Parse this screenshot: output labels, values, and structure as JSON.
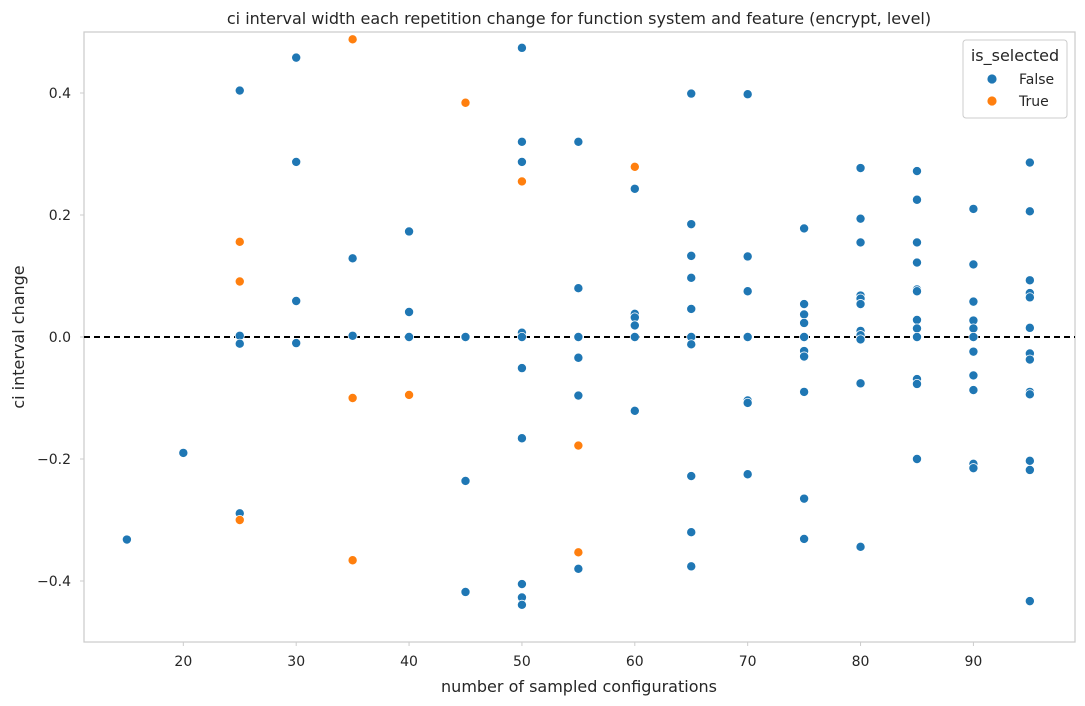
{
  "chart_data": {
    "type": "scatter",
    "title": "ci interval width each repetition change for function system and feature (encrypt, level)",
    "xlabel": "number of sampled configurations",
    "ylabel": "ci interval change",
    "xlim": [
      11.2,
      99
    ],
    "ylim": [
      -0.5,
      0.5
    ],
    "xticks": [
      20,
      30,
      40,
      50,
      60,
      70,
      80,
      90
    ],
    "yticks": [
      -0.4,
      -0.2,
      0.0,
      0.2,
      0.4
    ],
    "ytick_labels": [
      "−0.4",
      "−0.2",
      "0.0",
      "0.2",
      "0.4"
    ],
    "grid": false,
    "reference_line": {
      "y": 0,
      "style": "dashed",
      "color": "#000000"
    },
    "legend": {
      "title": "is_selected",
      "placement": "top-right"
    },
    "series": [
      {
        "name": "False",
        "color": "#1f77b4",
        "points": [
          [
            15,
            -0.332
          ],
          [
            20,
            -0.19
          ],
          [
            25,
            0.404
          ],
          [
            25,
            0.002
          ],
          [
            25,
            -0.011
          ],
          [
            25,
            -0.289
          ],
          [
            30,
            0.458
          ],
          [
            30,
            0.287
          ],
          [
            30,
            0.059
          ],
          [
            30,
            -0.01
          ],
          [
            35,
            0.129
          ],
          [
            35,
            0.002
          ],
          [
            40,
            0.173
          ],
          [
            40,
            0.041
          ],
          [
            40,
            0.0
          ],
          [
            45,
            0.0
          ],
          [
            45,
            -0.236
          ],
          [
            45,
            -0.418
          ],
          [
            50,
            0.474
          ],
          [
            50,
            0.32
          ],
          [
            50,
            0.287
          ],
          [
            50,
            0.007
          ],
          [
            50,
            0.0
          ],
          [
            50,
            -0.051
          ],
          [
            50,
            -0.166
          ],
          [
            50,
            -0.405
          ],
          [
            50,
            -0.427
          ],
          [
            50,
            -0.439
          ],
          [
            55,
            0.32
          ],
          [
            55,
            0.08
          ],
          [
            55,
            0.0
          ],
          [
            55,
            -0.034
          ],
          [
            55,
            -0.096
          ],
          [
            55,
            -0.38
          ],
          [
            60,
            0.243
          ],
          [
            60,
            0.038
          ],
          [
            60,
            0.032
          ],
          [
            60,
            0.019
          ],
          [
            60,
            0.0
          ],
          [
            60,
            -0.121
          ],
          [
            65,
            0.399
          ],
          [
            65,
            0.185
          ],
          [
            65,
            0.133
          ],
          [
            65,
            0.097
          ],
          [
            65,
            0.046
          ],
          [
            65,
            0.0
          ],
          [
            65,
            -0.012
          ],
          [
            65,
            -0.228
          ],
          [
            65,
            -0.32
          ],
          [
            65,
            -0.376
          ],
          [
            70,
            0.398
          ],
          [
            70,
            0.132
          ],
          [
            70,
            0.075
          ],
          [
            70,
            0.0
          ],
          [
            70,
            -0.104
          ],
          [
            70,
            -0.108
          ],
          [
            70,
            -0.225
          ],
          [
            75,
            0.178
          ],
          [
            75,
            0.054
          ],
          [
            75,
            0.037
          ],
          [
            75,
            0.023
          ],
          [
            75,
            0.0
          ],
          [
            75,
            -0.023
          ],
          [
            75,
            -0.032
          ],
          [
            75,
            -0.09
          ],
          [
            75,
            -0.265
          ],
          [
            75,
            -0.331
          ],
          [
            80,
            0.277
          ],
          [
            80,
            0.194
          ],
          [
            80,
            0.155
          ],
          [
            80,
            0.068
          ],
          [
            80,
            0.063
          ],
          [
            80,
            0.054
          ],
          [
            80,
            0.01
          ],
          [
            80,
            0.003
          ],
          [
            80,
            -0.004
          ],
          [
            80,
            -0.076
          ],
          [
            80,
            -0.344
          ],
          [
            85,
            0.272
          ],
          [
            85,
            0.225
          ],
          [
            85,
            0.155
          ],
          [
            85,
            0.122
          ],
          [
            85,
            0.078
          ],
          [
            85,
            0.075
          ],
          [
            85,
            0.028
          ],
          [
            85,
            0.014
          ],
          [
            85,
            0.0
          ],
          [
            85,
            -0.069
          ],
          [
            85,
            -0.077
          ],
          [
            85,
            -0.2
          ],
          [
            90,
            0.21
          ],
          [
            90,
            0.119
          ],
          [
            90,
            0.058
          ],
          [
            90,
            0.027
          ],
          [
            90,
            0.014
          ],
          [
            90,
            0.0
          ],
          [
            90,
            -0.024
          ],
          [
            90,
            -0.063
          ],
          [
            90,
            -0.087
          ],
          [
            90,
            -0.208
          ],
          [
            90,
            -0.215
          ],
          [
            95,
            0.286
          ],
          [
            95,
            0.206
          ],
          [
            95,
            0.093
          ],
          [
            95,
            0.072
          ],
          [
            95,
            0.065
          ],
          [
            95,
            0.015
          ],
          [
            95,
            -0.027
          ],
          [
            95,
            -0.037
          ],
          [
            95,
            -0.09
          ],
          [
            95,
            -0.094
          ],
          [
            95,
            -0.203
          ],
          [
            95,
            -0.218
          ],
          [
            95,
            -0.433
          ]
        ]
      },
      {
        "name": "True",
        "color": "#ff7f0e",
        "points": [
          [
            25,
            0.156
          ],
          [
            25,
            0.091
          ],
          [
            25,
            -0.3
          ],
          [
            35,
            0.488
          ],
          [
            35,
            -0.1
          ],
          [
            35,
            -0.366
          ],
          [
            40,
            -0.095
          ],
          [
            45,
            0.384
          ],
          [
            50,
            0.255
          ],
          [
            55,
            -0.178
          ],
          [
            55,
            -0.353
          ],
          [
            60,
            0.279
          ]
        ]
      }
    ]
  }
}
